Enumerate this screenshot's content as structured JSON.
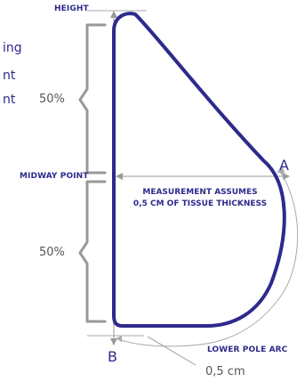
{
  "labels": {
    "height": "HEIGHT",
    "midway_point": "MIDWAY POINT",
    "measurement_line1": "MEASUREMENT ASSUMES",
    "measurement_line2": "0,5 CM OF TISSUE THICKNESS",
    "upper_percent": "50%",
    "lower_percent": "50%",
    "point_a": "A",
    "point_b": "B",
    "lower_pole_arc": "LOWER POLE ARC",
    "thickness": "0,5 cm"
  },
  "cropped_text": {
    "line1": "ing",
    "line2": "nt",
    "line3": "nt"
  },
  "colors": {
    "outline": "#2e2a8c",
    "label_blue": "#2e2a8c",
    "bracket_gray": "#999999",
    "guide_gray": "#aaaaaa",
    "text_gray": "#555555"
  }
}
